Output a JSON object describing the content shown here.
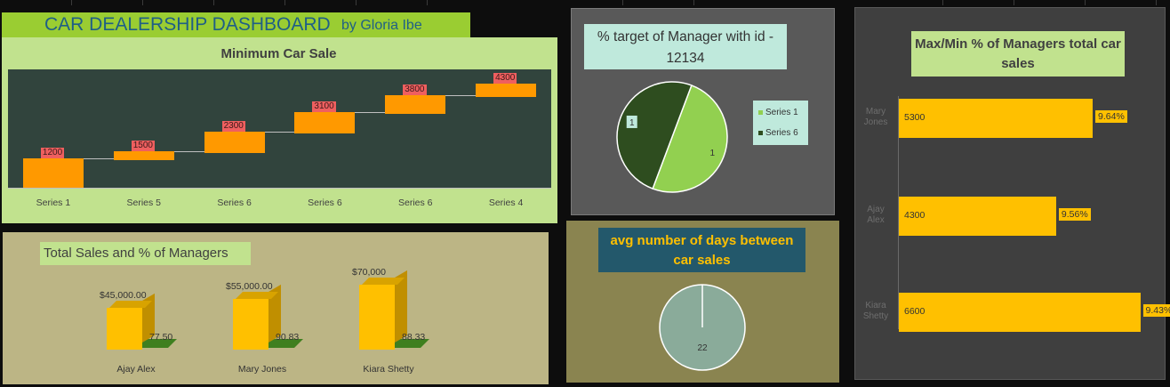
{
  "header": {
    "title": "CAR DEALERSHIP DASHBOARD",
    "author": "by Gloria Ibe"
  },
  "colors": {
    "accent_green": "#9acd32",
    "panel_green": "#c1e28e",
    "bar_orange": "#ff9900",
    "bar_gold": "#ffc000",
    "label_red": "#ef5f5f"
  },
  "chart_data": [
    {
      "id": "min_car_sale",
      "type": "bar",
      "title": "Minimum Car Sale",
      "categories": [
        "Series 1",
        "Series 5",
        "Series 6",
        "Series 6",
        "Series 6",
        "Series 4"
      ],
      "values": [
        1200,
        1500,
        2300,
        3100,
        3800,
        4300
      ],
      "value_labels": [
        "1200",
        "1500",
        "2300",
        "3100",
        "3800",
        "4300"
      ],
      "ylim": [
        0,
        4800
      ]
    },
    {
      "id": "total_sales",
      "type": "bar",
      "title": "Total Sales and % of Managers",
      "categories": [
        "Ajay Alex",
        "Mary Jones",
        "Kiara Shetty"
      ],
      "series": [
        {
          "values": [
            45000,
            55000,
            70000
          ],
          "labels": [
            "$45,000.00",
            "$55,000.00",
            "$70,000"
          ]
        },
        {
          "values": [
            77.5,
            90.83,
            88.33
          ],
          "labels": [
            "77.50",
            "90.83",
            "88.33"
          ]
        }
      ],
      "ylim": [
        0,
        80000
      ]
    },
    {
      "id": "target_manager",
      "type": "pie",
      "title_lines": [
        "% target of Manager with id -",
        "12134"
      ],
      "series": [
        {
          "name": "Series 1",
          "value": 1,
          "label": "1",
          "color": "#92d050"
        },
        {
          "name": "Series 6",
          "value": 1,
          "label": "1",
          "color": "#2e4d1f"
        }
      ]
    },
    {
      "id": "avg_days",
      "type": "pie",
      "title_lines": [
        "avg number of days between",
        "car sales"
      ],
      "values": [
        22
      ],
      "value_label": "22"
    },
    {
      "id": "max_min_managers",
      "type": "bar",
      "orientation": "horizontal",
      "title_lines": [
        "Max/Min % of Managers total car",
        "sales"
      ],
      "categories": [
        {
          "first": "Mary",
          "last": "Jones"
        },
        {
          "first": "Ajay",
          "last": "Alex"
        },
        {
          "first": "Kiara",
          "last": "Shetty"
        }
      ],
      "values": [
        5300,
        4300,
        6600
      ],
      "value_labels": [
        "5300",
        "4300",
        "6600"
      ],
      "pct_labels": [
        "9.64%",
        "9.56%",
        "9.43%"
      ],
      "xlim": [
        0,
        7000
      ]
    }
  ]
}
